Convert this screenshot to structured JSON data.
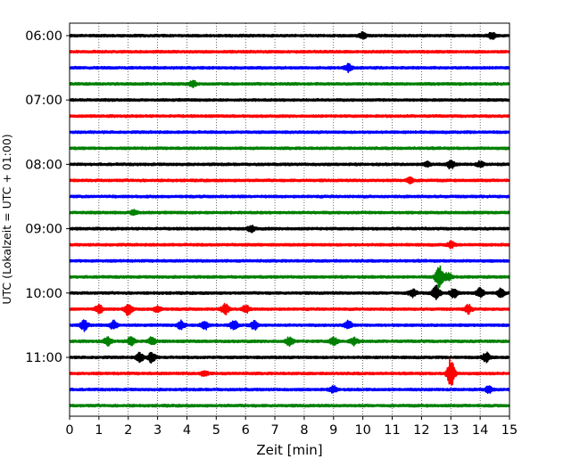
{
  "chart_data": {
    "type": "line",
    "subtype": "helicorder",
    "title": "",
    "xlabel": "Zeit  [min]",
    "ylabel": "UTC (Lokalzeit = UTC + 01:00)",
    "xlim": [
      0,
      15
    ],
    "x_ticks": [
      0,
      1,
      2,
      3,
      4,
      5,
      6,
      7,
      8,
      9,
      10,
      11,
      12,
      13,
      14,
      15
    ],
    "y_tick_labels": [
      "06:00",
      "07:00",
      "08:00",
      "09:00",
      "10:00",
      "11:00"
    ],
    "trace_interval_min": 15,
    "trace_colors": [
      "#000000",
      "#ff0000",
      "#0000ff",
      "#008000"
    ],
    "vertical_grid": "dotted",
    "traces": [
      {
        "time": "06:00",
        "color": "#000000",
        "bursts": [
          {
            "x": 10.0,
            "amp": 0.6
          },
          {
            "x": 14.4,
            "amp": 0.6
          }
        ]
      },
      {
        "time": "06:15",
        "color": "#ff0000",
        "bursts": []
      },
      {
        "time": "06:30",
        "color": "#0000ff",
        "bursts": [
          {
            "x": 9.5,
            "amp": 0.7
          }
        ]
      },
      {
        "time": "06:45",
        "color": "#008000",
        "bursts": [
          {
            "x": 4.2,
            "amp": 0.6
          }
        ]
      },
      {
        "time": "07:00",
        "color": "#000000",
        "bursts": []
      },
      {
        "time": "07:15",
        "color": "#ff0000",
        "bursts": []
      },
      {
        "time": "07:30",
        "color": "#0000ff",
        "bursts": []
      },
      {
        "time": "07:45",
        "color": "#008000",
        "bursts": []
      },
      {
        "time": "08:00",
        "color": "#000000",
        "bursts": [
          {
            "x": 12.2,
            "amp": 0.5
          },
          {
            "x": 13.0,
            "amp": 0.8
          },
          {
            "x": 14.0,
            "amp": 0.5
          }
        ]
      },
      {
        "time": "08:15",
        "color": "#ff0000",
        "bursts": [
          {
            "x": 11.6,
            "amp": 0.6
          }
        ]
      },
      {
        "time": "08:30",
        "color": "#0000ff",
        "bursts": []
      },
      {
        "time": "08:45",
        "color": "#008000",
        "bursts": [
          {
            "x": 2.2,
            "amp": 0.5
          }
        ]
      },
      {
        "time": "09:00",
        "color": "#000000",
        "bursts": [
          {
            "x": 6.2,
            "amp": 0.6
          }
        ]
      },
      {
        "time": "09:15",
        "color": "#ff0000",
        "bursts": [
          {
            "x": 13.0,
            "amp": 0.6
          }
        ]
      },
      {
        "time": "09:30",
        "color": "#0000ff",
        "bursts": []
      },
      {
        "time": "09:45",
        "color": "#008000",
        "bursts": [
          {
            "x": 12.6,
            "amp": 2.4
          },
          {
            "x": 12.9,
            "amp": 0.8
          }
        ]
      },
      {
        "time": "10:00",
        "color": "#000000",
        "bursts": [
          {
            "x": 11.7,
            "amp": 0.8
          },
          {
            "x": 12.5,
            "amp": 1.4
          },
          {
            "x": 13.1,
            "amp": 1.0
          },
          {
            "x": 14.0,
            "amp": 0.9
          },
          {
            "x": 14.7,
            "amp": 0.8
          }
        ]
      },
      {
        "time": "10:15",
        "color": "#ff0000",
        "bursts": [
          {
            "x": 1.0,
            "amp": 0.8
          },
          {
            "x": 2.0,
            "amp": 1.2
          },
          {
            "x": 3.0,
            "amp": 0.6
          },
          {
            "x": 5.3,
            "amp": 1.0
          },
          {
            "x": 6.0,
            "amp": 0.8
          },
          {
            "x": 13.6,
            "amp": 0.8
          }
        ]
      },
      {
        "time": "10:30",
        "color": "#0000ff",
        "bursts": [
          {
            "x": 0.5,
            "amp": 1.0
          },
          {
            "x": 1.5,
            "amp": 0.8
          },
          {
            "x": 3.8,
            "amp": 0.8
          },
          {
            "x": 4.6,
            "amp": 0.9
          },
          {
            "x": 5.6,
            "amp": 1.0
          },
          {
            "x": 6.3,
            "amp": 0.8
          },
          {
            "x": 9.5,
            "amp": 0.8
          }
        ]
      },
      {
        "time": "10:45",
        "color": "#008000",
        "bursts": [
          {
            "x": 1.3,
            "amp": 0.8
          },
          {
            "x": 2.1,
            "amp": 0.9
          },
          {
            "x": 2.8,
            "amp": 0.7
          },
          {
            "x": 7.5,
            "amp": 0.8
          },
          {
            "x": 9.0,
            "amp": 0.8
          },
          {
            "x": 9.7,
            "amp": 0.7
          }
        ]
      },
      {
        "time": "11:00",
        "color": "#000000",
        "bursts": [
          {
            "x": 2.4,
            "amp": 0.9
          },
          {
            "x": 2.8,
            "amp": 1.0
          },
          {
            "x": 14.2,
            "amp": 0.9
          }
        ]
      },
      {
        "time": "11:15",
        "color": "#ff0000",
        "bursts": [
          {
            "x": 13.0,
            "amp": 3.0
          },
          {
            "x": 4.6,
            "amp": 0.5
          }
        ]
      },
      {
        "time": "11:30",
        "color": "#0000ff",
        "bursts": [
          {
            "x": 9.0,
            "amp": 0.6
          },
          {
            "x": 14.3,
            "amp": 0.6
          }
        ]
      },
      {
        "time": "11:45",
        "color": "#008000",
        "bursts": []
      }
    ]
  }
}
